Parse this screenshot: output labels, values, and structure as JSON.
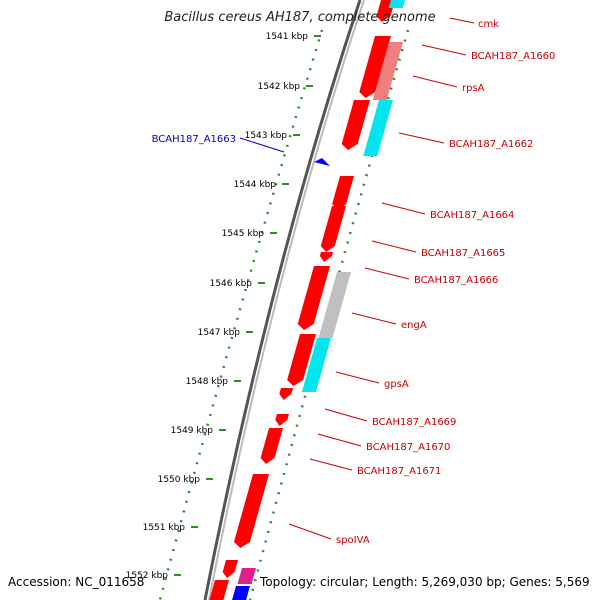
{
  "title": "Bacillus cereus AH187, complete genome",
  "footer": {
    "accession": "Accession: NC_011658",
    "topology": "Topology: circular; Length: 5,269,030 bp; Genes: 5,569"
  },
  "colors": {
    "forward_cds": "#ff0000",
    "reverse_label": "#0000cc",
    "forward_label": "#cc0000",
    "cyan": "#00e5ee",
    "pink": "#f08080",
    "gray": "#c0c0c0",
    "magenta": "#e0208f",
    "blue": "#0000ff",
    "tick": "#2e8b2e",
    "backbone": "#808080"
  },
  "ticks": [
    {
      "label": "1541 kbp"
    },
    {
      "label": "1542 kbp"
    },
    {
      "label": "1543 kbp"
    },
    {
      "label": "1544 kbp"
    },
    {
      "label": "1545 kbp"
    },
    {
      "label": "1546 kbp"
    },
    {
      "label": "1547 kbp"
    },
    {
      "label": "1548 kbp"
    },
    {
      "label": "1549 kbp"
    },
    {
      "label": "1550 kbp"
    },
    {
      "label": "1551 kbp"
    },
    {
      "label": "1552 kbp"
    }
  ],
  "genes": [
    {
      "label": "cmk",
      "strand": "forward"
    },
    {
      "label": "BCAH187_A1660",
      "strand": "forward"
    },
    {
      "label": "rpsA",
      "strand": "forward"
    },
    {
      "label": "BCAH187_A1662",
      "strand": "forward"
    },
    {
      "label": "BCAH187_A1663",
      "strand": "reverse"
    },
    {
      "label": "BCAH187_A1664",
      "strand": "forward"
    },
    {
      "label": "BCAH187_A1665",
      "strand": "forward"
    },
    {
      "label": "BCAH187_A1666",
      "strand": "forward"
    },
    {
      "label": "engA",
      "strand": "forward"
    },
    {
      "label": "gpsA",
      "strand": "forward"
    },
    {
      "label": "BCAH187_A1669",
      "strand": "forward"
    },
    {
      "label": "BCAH187_A1670",
      "strand": "forward"
    },
    {
      "label": "BCAH187_A1671",
      "strand": "forward"
    },
    {
      "label": "spoIVA",
      "strand": "forward"
    }
  ]
}
